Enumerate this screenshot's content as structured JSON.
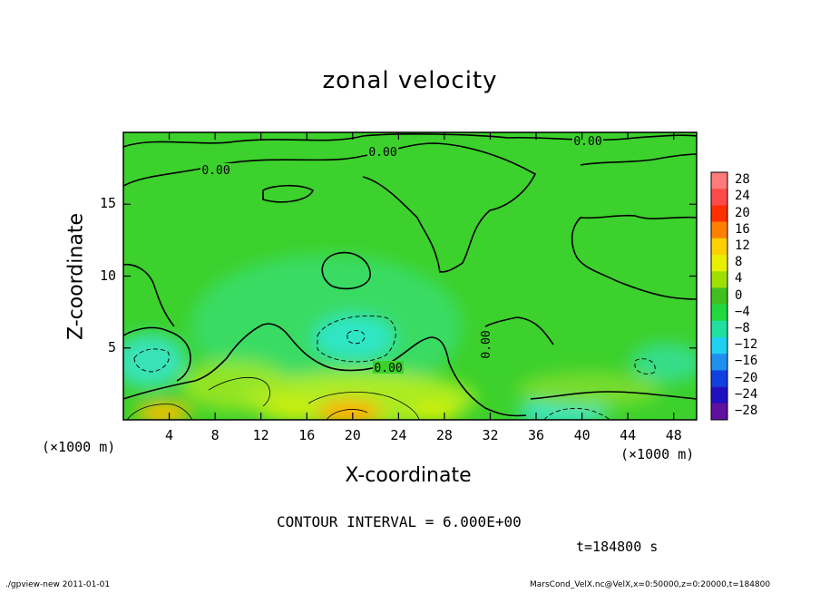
{
  "chart_data": {
    "type": "heatmap",
    "title": "zonal velocity",
    "xlabel": "X-coordinate",
    "ylabel": "Z-coordinate",
    "x_unit": "(×1000 m)",
    "y_unit": "(×1000 m)",
    "xlim": [
      0,
      50
    ],
    "ylim": [
      0,
      20
    ],
    "x_ticks": [
      "4",
      "8",
      "12",
      "16",
      "20",
      "24",
      "28",
      "32",
      "36",
      "40",
      "44",
      "48"
    ],
    "y_ticks": [
      "5",
      "10",
      "15"
    ],
    "contour_labels": [
      "0.00",
      "0.00",
      "0.00",
      "0.00",
      "0.00"
    ],
    "colorbar": {
      "labels": [
        "28",
        "24",
        "20",
        "16",
        "12",
        "8",
        "4",
        "0",
        "-4",
        "-8",
        "-12",
        "-16",
        "-20",
        "-24",
        "-28"
      ],
      "colors": [
        "#ff7a7a",
        "#ff4a4a",
        "#ff3000",
        "#ff8000",
        "#ffd000",
        "#e8f000",
        "#a0e000",
        "#40c020",
        "#20d840",
        "#20e0a0",
        "#20d0f0",
        "#2090f0",
        "#1040e0",
        "#2010c0",
        "#6010a0"
      ]
    },
    "features": [
      {
        "kind": "max",
        "x": 20.0,
        "z": 0.5,
        "value": 14
      },
      {
        "kind": "max",
        "x": 3.0,
        "z": 0.5,
        "value": 12
      },
      {
        "kind": "min",
        "x": 20.5,
        "z": 5.6,
        "value": -8
      },
      {
        "kind": "min",
        "x": 2.5,
        "z": 4.0,
        "value": -8
      },
      {
        "kind": "min",
        "x": 40.0,
        "z": 0.3,
        "value": -8
      },
      {
        "kind": "min",
        "x": 47.0,
        "z": 4.8,
        "value": -5
      }
    ]
  },
  "contour_interval": "CONTOUR INTERVAL = 6.000E+00",
  "time_label": "t=184800 s",
  "footer_left": "./gpview-new  2011-01-01",
  "footer_right": "MarsCond_VelX.nc@VelX,x=0:50000,z=0:20000,t=184800"
}
